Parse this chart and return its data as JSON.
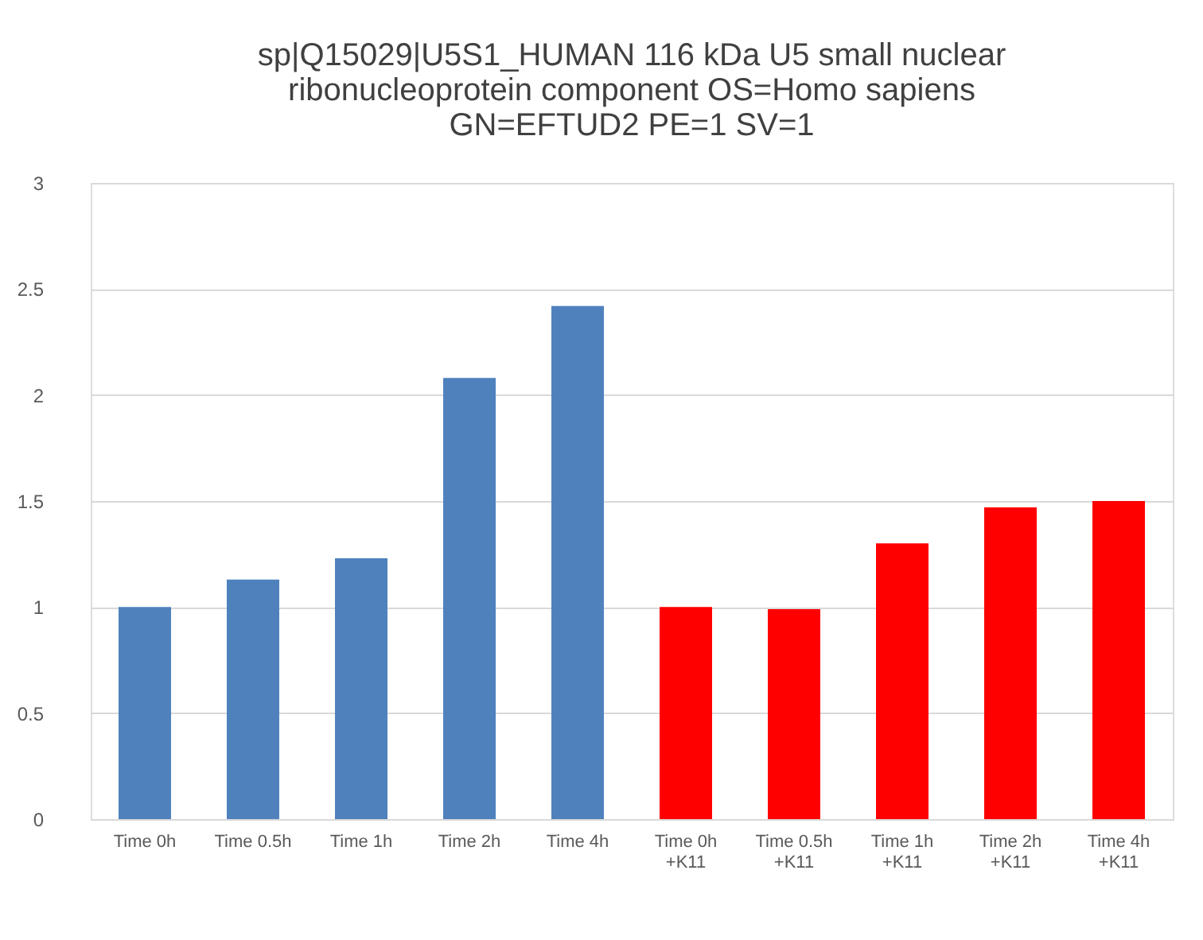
{
  "chart_data": {
    "type": "bar",
    "title": "sp|Q15029|U5S1_HUMAN 116 kDa U5 small nuclear\nribonucleoprotein component OS=Homo sapiens\nGN=EFTUD2 PE=1 SV=1",
    "categories": [
      "Time 0h",
      "Time 0.5h",
      "Time 1h",
      "Time 2h",
      "Time 4h",
      "Time 0h\n+K11",
      "Time 0.5h\n+K11",
      "Time 1h\n+K11",
      "Time 2h\n+K11",
      "Time 4h\n+K11"
    ],
    "values": [
      1.0,
      1.13,
      1.23,
      2.08,
      2.42,
      1.0,
      0.99,
      1.3,
      1.47,
      1.5
    ],
    "colors": [
      "#4f81bd",
      "#4f81bd",
      "#4f81bd",
      "#4f81bd",
      "#4f81bd",
      "#ff0000",
      "#ff0000",
      "#ff0000",
      "#ff0000",
      "#ff0000"
    ],
    "ylim": [
      0,
      3
    ],
    "yticks": [
      0,
      0.5,
      1,
      1.5,
      2,
      2.5,
      3
    ],
    "grid": "y"
  }
}
